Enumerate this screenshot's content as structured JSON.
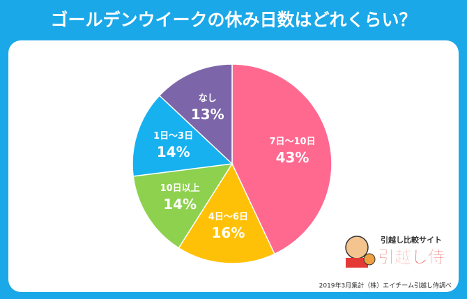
{
  "chart_data": {
    "type": "pie",
    "title": "ゴールデンウイークの休み日数はどれくらい？",
    "categories": [
      "7日〜10日",
      "4日〜6日",
      "10日以上",
      "1日〜3日",
      "なし"
    ],
    "values": [
      43,
      16,
      14,
      14,
      13
    ],
    "value_labels": [
      "43%",
      "16%",
      "14%",
      "14%",
      "13%"
    ],
    "colors": [
      "#ff6990",
      "#ffc107",
      "#8ed14f",
      "#17b1f0",
      "#7c66a9"
    ],
    "source": "2019年3月集計（株）エイチーム引越し侍調べ",
    "logo": {
      "tagline": "引越し比較サイト",
      "name": "引越し侍"
    }
  }
}
